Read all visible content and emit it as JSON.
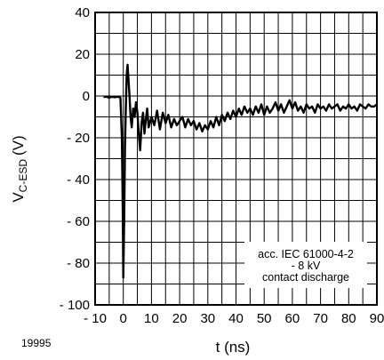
{
  "figure_id": "19995",
  "chart_data": {
    "type": "line",
    "xlabel": "t (ns)",
    "ylabel_main": "V",
    "ylabel_sub": "C-ESD",
    "ylabel_unit": "(V)",
    "xlim": [
      -10,
      90
    ],
    "ylim": [
      -100,
      40
    ],
    "x_ticks": [
      -10,
      0,
      10,
      20,
      30,
      40,
      50,
      60,
      70,
      80,
      90
    ],
    "x_tick_labels": [
      "- 10",
      "0",
      "10",
      "20",
      "30",
      "40",
      "50",
      "60",
      "70",
      "80",
      "90"
    ],
    "y_ticks": [
      -100,
      -80,
      -60,
      -40,
      -20,
      0,
      20,
      40
    ],
    "y_tick_labels": [
      "- 100",
      "- 80",
      "- 60",
      "- 40",
      "- 20",
      "0",
      "20",
      "40"
    ],
    "x_grid_step": 5,
    "y_grid_step": 10,
    "grid": true,
    "annotation": [
      "acc. IEC 61000-4-2",
      "- 8 kV",
      "contact discharge"
    ],
    "annotation_position": "bottom-right",
    "series": [
      {
        "points": [
          [
            -7,
            -0.5
          ],
          [
            -6,
            -0.3
          ],
          [
            -5,
            -0.8
          ],
          [
            -4,
            -0.4
          ],
          [
            -3,
            -0.6
          ],
          [
            -2,
            -0.3
          ],
          [
            -1,
            -0.8
          ],
          [
            -0.5,
            -20
          ],
          [
            -0.2,
            -55
          ],
          [
            0,
            -87
          ],
          [
            0.3,
            -60
          ],
          [
            0.6,
            -25
          ],
          [
            0.9,
            -5
          ],
          [
            1.2,
            10
          ],
          [
            1.5,
            15
          ],
          [
            1.8,
            9
          ],
          [
            2.2,
            0
          ],
          [
            2.6,
            -10
          ],
          [
            3,
            -15
          ],
          [
            3.5,
            -6
          ],
          [
            4,
            -10
          ],
          [
            4.5,
            -3
          ],
          [
            5,
            -8
          ],
          [
            5.5,
            -18
          ],
          [
            6,
            -26
          ],
          [
            6.5,
            -13
          ],
          [
            7,
            -8
          ],
          [
            7.5,
            -18
          ],
          [
            8,
            -11
          ],
          [
            8.5,
            -6
          ],
          [
            9,
            -15
          ],
          [
            10,
            -10
          ],
          [
            11,
            -14
          ],
          [
            12,
            -7
          ],
          [
            13,
            -16
          ],
          [
            14,
            -8
          ],
          [
            15,
            -13
          ],
          [
            16,
            -9
          ],
          [
            17,
            -15
          ],
          [
            18,
            -11
          ],
          [
            19,
            -14
          ],
          [
            20,
            -12
          ],
          [
            21,
            -10
          ],
          [
            22,
            -15
          ],
          [
            23,
            -11
          ],
          [
            24,
            -14
          ],
          [
            25,
            -12
          ],
          [
            26,
            -16
          ],
          [
            27,
            -13
          ],
          [
            28,
            -17
          ],
          [
            29,
            -14
          ],
          [
            30,
            -16
          ],
          [
            31,
            -12
          ],
          [
            32,
            -15
          ],
          [
            33,
            -10
          ],
          [
            34,
            -14
          ],
          [
            35,
            -9
          ],
          [
            36,
            -12
          ],
          [
            37,
            -8
          ],
          [
            38,
            -11
          ],
          [
            39,
            -7
          ],
          [
            40,
            -10
          ],
          [
            41,
            -6
          ],
          [
            42,
            -9
          ],
          [
            43,
            -5
          ],
          [
            44,
            -8
          ],
          [
            45,
            -6
          ],
          [
            46,
            -9
          ],
          [
            47,
            -5
          ],
          [
            48,
            -8
          ],
          [
            49,
            -4
          ],
          [
            50,
            -9
          ],
          [
            51,
            -5
          ],
          [
            52,
            -8
          ],
          [
            53,
            -6
          ],
          [
            54,
            -3
          ],
          [
            55,
            -7
          ],
          [
            56,
            -4
          ],
          [
            57,
            -8
          ],
          [
            58,
            -5
          ],
          [
            59,
            -2
          ],
          [
            60,
            -6
          ],
          [
            61,
            -3
          ],
          [
            62,
            -7
          ],
          [
            63,
            -5
          ],
          [
            64,
            -8
          ],
          [
            65,
            -4
          ],
          [
            66,
            -6
          ],
          [
            67,
            -5
          ],
          [
            68,
            -8
          ],
          [
            69,
            -4
          ],
          [
            70,
            -6
          ],
          [
            71,
            -5
          ],
          [
            72,
            -7
          ],
          [
            73,
            -4
          ],
          [
            74,
            -6
          ],
          [
            75,
            -5
          ],
          [
            76,
            -4
          ],
          [
            77,
            -7
          ],
          [
            78,
            -5
          ],
          [
            79,
            -6
          ],
          [
            80,
            -4
          ],
          [
            81,
            -6
          ],
          [
            82,
            -5
          ],
          [
            83,
            -7
          ],
          [
            84,
            -4
          ],
          [
            85,
            -5
          ],
          [
            86,
            -6
          ],
          [
            87,
            -4
          ],
          [
            88,
            -5
          ],
          [
            89,
            -5
          ],
          [
            90,
            -4
          ]
        ]
      }
    ]
  }
}
